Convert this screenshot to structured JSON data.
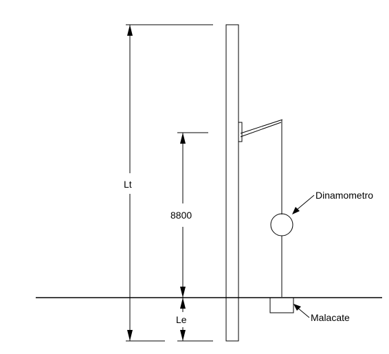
{
  "labels": {
    "total_length": "Lt",
    "height": "8800",
    "embedment": "Le",
    "dynamometer": "Dinamometro",
    "winch": "Malacate"
  }
}
